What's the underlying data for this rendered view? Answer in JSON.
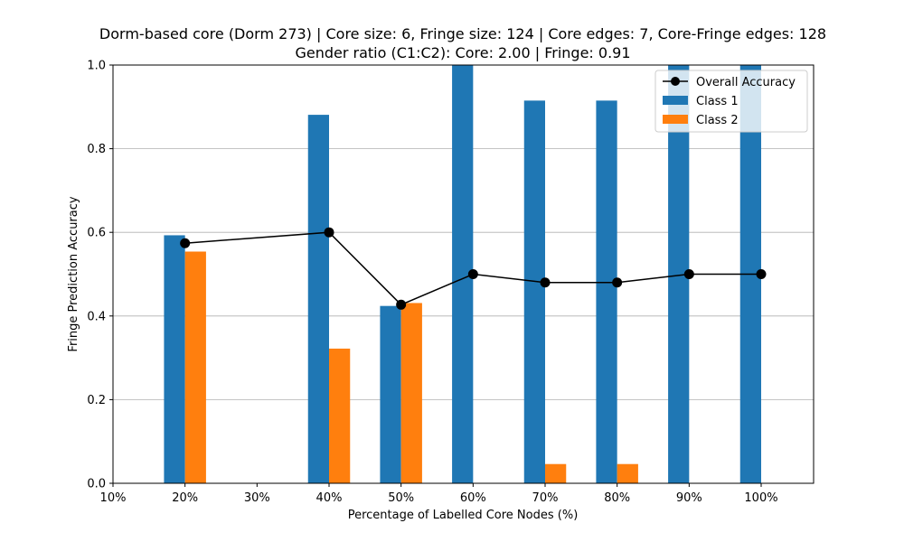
{
  "colors": {
    "class1": "#1f77b4",
    "class2": "#ff7f0e",
    "overall": "#000000",
    "grid": "#b0b0b0"
  },
  "chart_data": {
    "type": "bar",
    "title_line1": "Dorm-based core (Dorm 273) | Core size: 6, Fringe size: 124 | Core edges: 7, Core-Fringe edges: 128",
    "title_line2": "Gender ratio (C1:C2): Core: 2.00 | Fringe: 0.91",
    "xlabel": "Percentage of Labelled Core Nodes (%)",
    "ylabel": "Fringe Prediction Accuracy",
    "categories": [
      "10%",
      "20%",
      "30%",
      "40%",
      "50%",
      "60%",
      "70%",
      "80%",
      "90%",
      "100%"
    ],
    "yticks": [
      "0.0",
      "0.2",
      "0.4",
      "0.6",
      "0.8",
      "1.0"
    ],
    "ylim": [
      0,
      1
    ],
    "grid": "horizontal",
    "legend_position": "top-right",
    "series": [
      {
        "name": "Class 1",
        "kind": "bar",
        "values": [
          null,
          0.593,
          null,
          0.881,
          0.424,
          1.0,
          0.915,
          0.915,
          1.0,
          1.0
        ]
      },
      {
        "name": "Class 2",
        "kind": "bar",
        "values": [
          null,
          0.554,
          null,
          0.322,
          0.431,
          0.0,
          0.046,
          0.046,
          0.0,
          0.0
        ]
      },
      {
        "name": "Overall Accuracy",
        "kind": "line",
        "values": [
          null,
          0.574,
          null,
          0.6,
          0.427,
          0.5,
          0.48,
          0.48,
          0.5,
          0.5
        ]
      }
    ]
  }
}
